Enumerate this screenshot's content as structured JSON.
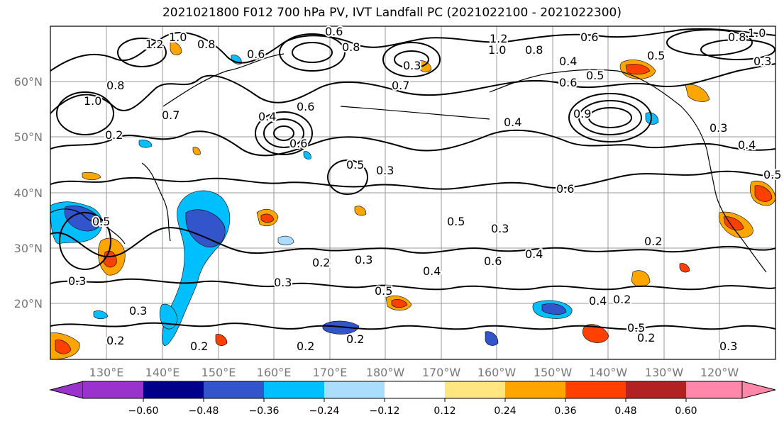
{
  "title": "2021021800 F012 700 hPa PV, IVT Landfall PC (2021022100 - 2021022300)",
  "latitude_labels": [
    "60°N",
    "50°N",
    "40°N",
    "30°N",
    "20°N"
  ],
  "longitude_labels": [
    "130°E",
    "140°E",
    "150°E",
    "160°E",
    "170°E",
    "180°W",
    "170°W",
    "160°W",
    "150°W",
    "140°W",
    "130°W",
    "120°W"
  ],
  "contour_labels": [
    "1.0",
    "1.2",
    "0.8",
    "0.6",
    "0.6",
    "0.8",
    "0.3",
    "0.7",
    "1.2",
    "1.0",
    "0.8",
    "0.4",
    "0.6",
    "0.5",
    "0.5",
    "0.8",
    "1.0",
    "0.3",
    "0.8",
    "0.6",
    "1.0",
    "0.7",
    "0.2",
    "0.6",
    "0.4",
    "0.9",
    "0.5",
    "0.3",
    "0.4",
    "0.6",
    "0.3",
    "0.4",
    "0.5",
    "0.5",
    "0.3",
    "0.6",
    "0.4",
    "0.5",
    "0.6",
    "0.3",
    "0.2",
    "0.3",
    "0.3",
    "0.2",
    "0.4",
    "0.5",
    "0.4",
    "0.2",
    "0.3",
    "0.2",
    "0.2",
    "0.2",
    "0.2",
    "0.5",
    "0.2",
    "0.3"
  ],
  "colorbar": {
    "colors": [
      "#9933cc",
      "#00008b",
      "#3355cc",
      "#00bfff",
      "#aaddff",
      "#ffffff",
      "#ffe680",
      "#ffa500",
      "#ff4000",
      "#b22222",
      "#ff88aa"
    ],
    "tick_labels": [
      "−0.60",
      "−0.48",
      "−0.36",
      "−0.24",
      "−0.12",
      "0.12",
      "0.24",
      "0.36",
      "0.48",
      "0.60"
    ]
  }
}
